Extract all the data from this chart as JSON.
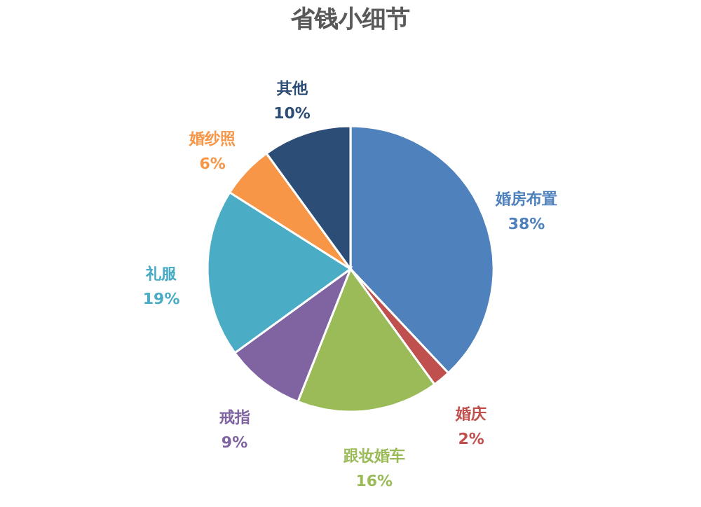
{
  "chart_data": {
    "type": "pie",
    "title": "省钱小细节",
    "categories": [
      "婚房布置",
      "婚庆",
      "跟妆婚车",
      "戒指",
      "礼服",
      "婚纱照",
      "其他"
    ],
    "values": [
      38,
      2,
      16,
      9,
      19,
      6,
      10
    ],
    "colors": [
      "#4f81bd",
      "#c0504d",
      "#9bbb59",
      "#8064a2",
      "#4bacc6",
      "#f79646",
      "#2c4d75"
    ],
    "value_labels": [
      "38%",
      "2%",
      "16%",
      "9%",
      "19%",
      "6%",
      "10%"
    ],
    "legend": false
  }
}
